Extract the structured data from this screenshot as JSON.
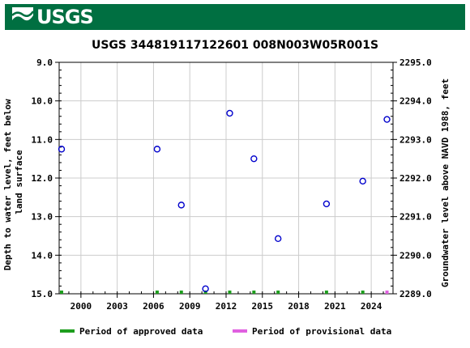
{
  "header": {
    "agency": "USGS"
  },
  "chart_data": {
    "type": "scatter",
    "title": "USGS 344819117122601 008N003W05R001S",
    "ylabel_left": "Depth to water level, feet below land surface",
    "ylabel_right": "Groundwater level above NAVD 1988, feet",
    "x_ticks": [
      "2000",
      "2003",
      "2006",
      "2009",
      "2012",
      "2015",
      "2018",
      "2021",
      "2024"
    ],
    "x_range": [
      1998.2,
      2025.8
    ],
    "ylim_left": [
      9.0,
      15.0
    ],
    "ylim_right": [
      2295.0,
      2289.0
    ],
    "y_ticks_left": [
      "9.0",
      "10.0",
      "11.0",
      "12.0",
      "13.0",
      "14.0",
      "15.0"
    ],
    "y_ticks_right": [
      "2295.0",
      "2294.0",
      "2293.0",
      "2292.0",
      "2291.0",
      "2290.0",
      "2289.0"
    ],
    "grid": true,
    "series": [
      {
        "name": "measurements",
        "color": "#0000cc",
        "points": [
          {
            "x": 1998.4,
            "y": 11.25
          },
          {
            "x": 2006.3,
            "y": 11.25
          },
          {
            "x": 2008.3,
            "y": 12.7
          },
          {
            "x": 2010.3,
            "y": 14.87
          },
          {
            "x": 2012.3,
            "y": 10.32
          },
          {
            "x": 2014.3,
            "y": 11.5
          },
          {
            "x": 2016.3,
            "y": 13.57
          },
          {
            "x": 2020.3,
            "y": 12.67
          },
          {
            "x": 2023.3,
            "y": 12.08
          },
          {
            "x": 2025.3,
            "y": 10.48
          }
        ]
      }
    ],
    "approved_marks": [
      1998.4,
      2006.3,
      2008.3,
      2010.3,
      2012.3,
      2014.3,
      2016.3,
      2020.3,
      2023.3
    ],
    "provisional_marks": [
      2025.3
    ],
    "legend": [
      {
        "label": "Period of approved data",
        "color": "#1e9e1e"
      },
      {
        "label": "Period of provisional data",
        "color": "#e060e0"
      }
    ],
    "legend_placement": "bottom"
  }
}
